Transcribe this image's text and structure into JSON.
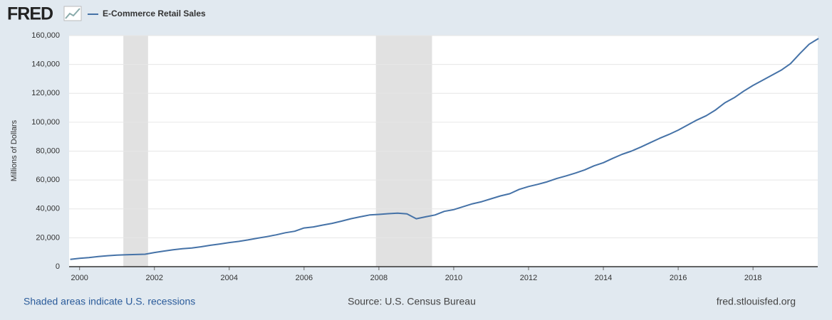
{
  "chart_data": {
    "type": "line",
    "logo": "FRED",
    "series_name": "E-Commerce Retail Sales",
    "ylabel": "Millions of Dollars",
    "footer_left": "Shaded areas indicate U.S. recessions",
    "footer_center": "Source: U.S. Census Bureau",
    "footer_right": "fred.stlouisfed.org",
    "color": "#4572a7",
    "recessions": [
      [
        2001.17,
        2001.83
      ],
      [
        2007.92,
        2009.42
      ]
    ],
    "x": [
      1999.75,
      2000,
      2000.25,
      2000.5,
      2000.75,
      2001,
      2001.25,
      2001.5,
      2001.75,
      2002,
      2002.25,
      2002.5,
      2002.75,
      2003,
      2003.25,
      2003.5,
      2003.75,
      2004,
      2004.25,
      2004.5,
      2004.75,
      2005,
      2005.25,
      2005.5,
      2005.75,
      2006,
      2006.25,
      2006.5,
      2006.75,
      2007,
      2007.25,
      2007.5,
      2007.75,
      2008,
      2008.25,
      2008.5,
      2008.75,
      2009,
      2009.25,
      2009.5,
      2009.75,
      2010,
      2010.25,
      2010.5,
      2010.75,
      2011,
      2011.25,
      2011.5,
      2011.75,
      2012,
      2012.25,
      2012.5,
      2012.75,
      2013,
      2013.25,
      2013.5,
      2013.75,
      2014,
      2014.25,
      2014.5,
      2014.75,
      2015,
      2015.25,
      2015.5,
      2015.75,
      2016,
      2016.25,
      2016.5,
      2016.75,
      2017,
      2017.25,
      2017.5,
      2017.75,
      2018,
      2018.25,
      2018.5,
      2018.75,
      2019,
      2019.25,
      2019.5,
      2019.75
    ],
    "values": [
      5000,
      5800,
      6300,
      7000,
      7600,
      8000,
      8200,
      8400,
      8600,
      9800,
      10800,
      11700,
      12400,
      12900,
      13800,
      14800,
      15700,
      16700,
      17500,
      18500,
      19700,
      20800,
      22000,
      23500,
      24500,
      26800,
      27500,
      28800,
      30000,
      31500,
      33200,
      34500,
      35800,
      36200,
      36700,
      37000,
      36600,
      33200,
      34500,
      35800,
      38300,
      39500,
      41500,
      43500,
      45000,
      47000,
      49000,
      50500,
      53500,
      55500,
      57000,
      58800,
      61000,
      62800,
      64800,
      67000,
      69800,
      72000,
      75000,
      77800,
      80000,
      82800,
      85800,
      88800,
      91500,
      94500,
      98000,
      101500,
      104500,
      108500,
      113500,
      117000,
      121500,
      125500,
      129000,
      132500,
      136000,
      140500,
      147500,
      154000,
      158000
    ],
    "xlim": [
      1999.72,
      2019.73
    ],
    "xticks": [
      2000,
      2002,
      2004,
      2006,
      2008,
      2010,
      2012,
      2014,
      2016,
      2018
    ],
    "ylim": [
      0,
      160000
    ],
    "yticks": [
      0,
      {
        "value": 20000,
        "label": "20,000"
      },
      {
        "value": 40000,
        "label": "40,000"
      },
      {
        "value": 60000,
        "label": "60,000"
      },
      {
        "value": 80000,
        "label": "80,000"
      },
      {
        "value": 100000,
        "label": "100,000"
      },
      {
        "value": 120000,
        "label": "120,000"
      },
      {
        "value": 140000,
        "label": "140,000"
      },
      {
        "value": 160000,
        "label": "160,000"
      }
    ],
    "grid": true
  }
}
